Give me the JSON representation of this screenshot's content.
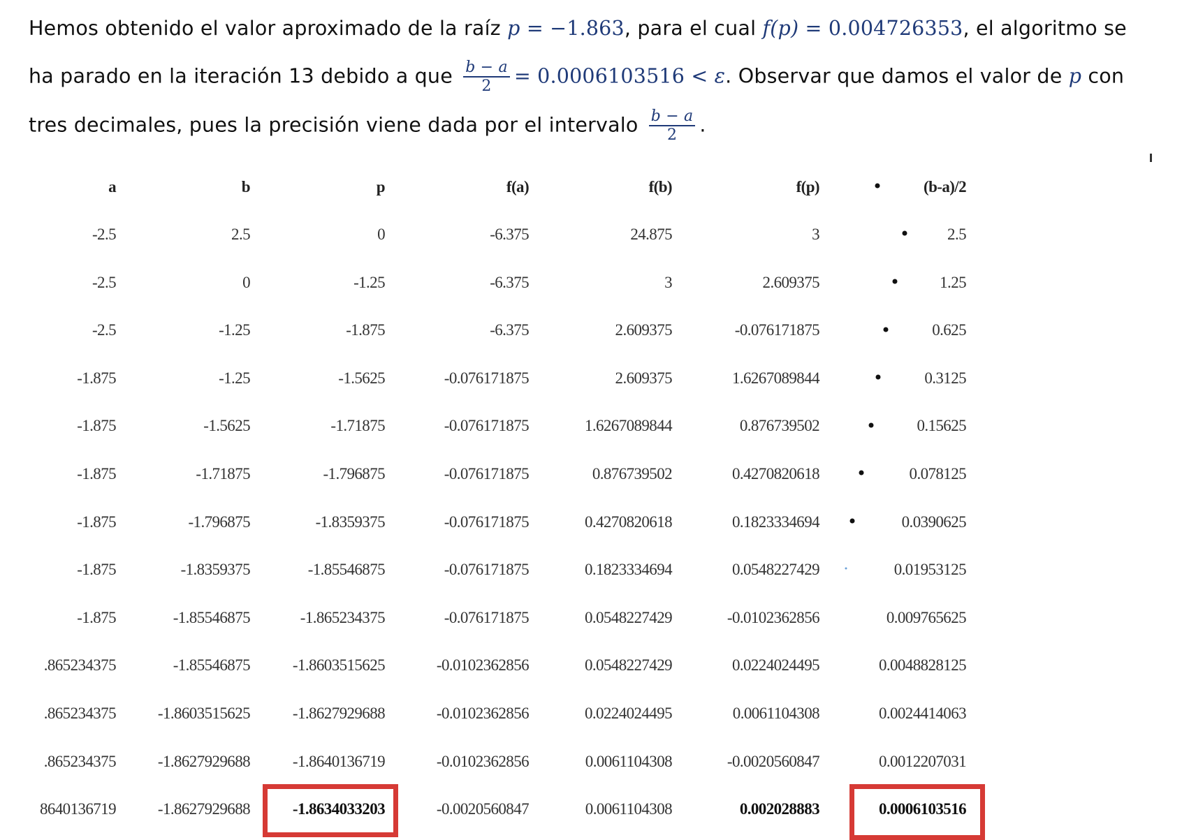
{
  "paragraph": {
    "l1_a": "Hemos obtenido el valor aproximado de la raíz ",
    "l1_p": "p",
    "l1_eq1": " = −1.863",
    "l1_b": ", para el cual ",
    "l1_fp": "f",
    "l1_fp_arg": "(p)",
    "l1_eq2": " = 0.004726353",
    "l1_c": ", el algoritmo se",
    "l2_a": "ha parado en la iteración 13 debido a que ",
    "frac_num": "b − a",
    "frac_den": "2",
    "l2_eq": "= 0.0006103516 < ",
    "l2_eps": "ε",
    "l2_b": ". Observar que damos el valor de ",
    "l2_p": "p",
    "l2_c": " con",
    "l3_a": "tres decimales, pues la precisión viene dada por el intervalo ",
    "l3_end": "."
  },
  "table": {
    "headers": [
      "a",
      "b",
      "p",
      "f(a)",
      "f(b)",
      "f(p)",
      "(b-a)/2"
    ],
    "rows": [
      [
        "-2.5",
        "2.5",
        "0",
        "-6.375",
        "24.875",
        "3",
        "2.5"
      ],
      [
        "-2.5",
        "0",
        "-1.25",
        "-6.375",
        "3",
        "2.609375",
        "1.25"
      ],
      [
        "-2.5",
        "-1.25",
        "-1.875",
        "-6.375",
        "2.609375",
        "-0.076171875",
        "0.625"
      ],
      [
        "-1.875",
        "-1.25",
        "-1.5625",
        "-0.076171875",
        "2.609375",
        "1.6267089844",
        "0.3125"
      ],
      [
        "-1.875",
        "-1.5625",
        "-1.71875",
        "-0.076171875",
        "1.6267089844",
        "0.876739502",
        "0.15625"
      ],
      [
        "-1.875",
        "-1.71875",
        "-1.796875",
        "-0.076171875",
        "0.876739502",
        "0.4270820618",
        "0.078125"
      ],
      [
        "-1.875",
        "-1.796875",
        "-1.8359375",
        "-0.076171875",
        "0.4270820618",
        "0.1823334694",
        "0.0390625"
      ],
      [
        "-1.875",
        "-1.8359375",
        "-1.85546875",
        "-0.076171875",
        "0.1823334694",
        "0.0548227429",
        "0.01953125"
      ],
      [
        "-1.875",
        "-1.85546875",
        "-1.865234375",
        "-0.076171875",
        "0.0548227429",
        "-0.0102362856",
        "0.009765625"
      ],
      [
        ".865234375",
        "-1.85546875",
        "-1.8603515625",
        "-0.0102362856",
        "0.0548227429",
        "0.0224024495",
        "0.0048828125"
      ],
      [
        ".865234375",
        "-1.8603515625",
        "-1.8627929688",
        "-0.0102362856",
        "0.0224024495",
        "0.0061104308",
        "0.0024414063"
      ],
      [
        ".865234375",
        "-1.8627929688",
        "-1.8640136719",
        "-0.0102362856",
        "0.0061104308",
        "-0.0020560847",
        "0.0012207031"
      ],
      [
        "8640136719",
        "-1.8627929688",
        "-1.8634033203",
        "-0.0020560847",
        "0.0061104308",
        "0.002028883",
        "0.0006103516"
      ]
    ],
    "highlight_color": "#d63a35"
  }
}
